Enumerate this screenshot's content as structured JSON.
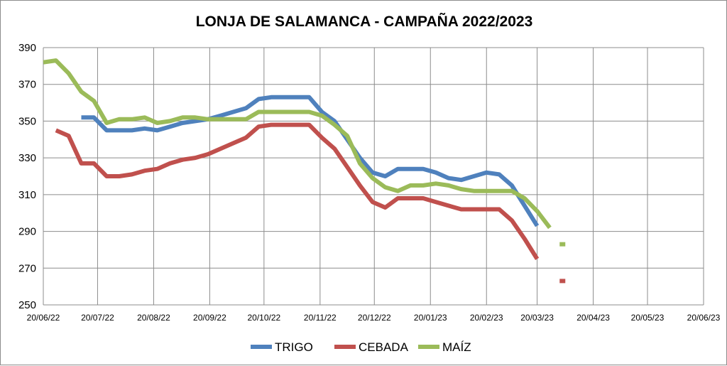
{
  "chart_data": {
    "type": "line",
    "title": "LONJA DE SALAMANCA - CAMPAÑA 2022/2023",
    "xlabel": "",
    "ylabel": "",
    "ylim": [
      250,
      390
    ],
    "yticks": [
      250,
      270,
      290,
      310,
      330,
      350,
      370,
      390
    ],
    "xlim": [
      "2022-06-20",
      "2023-06-20"
    ],
    "xticks": [
      {
        "date": "2022-06-20",
        "label": "20/06/22"
      },
      {
        "date": "2022-07-20",
        "label": "20/07/22"
      },
      {
        "date": "2022-08-20",
        "label": "20/08/22"
      },
      {
        "date": "2022-09-20",
        "label": "20/09/22"
      },
      {
        "date": "2022-10-20",
        "label": "20/10/22"
      },
      {
        "date": "2022-11-20",
        "label": "20/11/22"
      },
      {
        "date": "2022-12-20",
        "label": "20/12/22"
      },
      {
        "date": "2023-01-20",
        "label": "20/01/23"
      },
      {
        "date": "2023-02-20",
        "label": "20/02/23"
      },
      {
        "date": "2023-03-20",
        "label": "20/03/23"
      },
      {
        "date": "2023-04-20",
        "label": "20/04/23"
      },
      {
        "date": "2023-05-20",
        "label": "20/05/23"
      },
      {
        "date": "2023-06-20",
        "label": "20/06/23"
      }
    ],
    "grid": true,
    "legend_position": "bottom",
    "series": [
      {
        "name": "TRIGO",
        "color": "#4f81bd",
        "points": [
          [
            "2022-07-11",
            352
          ],
          [
            "2022-07-18",
            352
          ],
          [
            "2022-07-25",
            345
          ],
          [
            "2022-08-01",
            345
          ],
          [
            "2022-08-08",
            345
          ],
          [
            "2022-08-15",
            346
          ],
          [
            "2022-08-22",
            345
          ],
          [
            "2022-08-29",
            347
          ],
          [
            "2022-09-05",
            349
          ],
          [
            "2022-09-12",
            350
          ],
          [
            "2022-09-19",
            351
          ],
          [
            "2022-09-26",
            353
          ],
          [
            "2022-10-03",
            355
          ],
          [
            "2022-10-10",
            357
          ],
          [
            "2022-10-17",
            362
          ],
          [
            "2022-10-24",
            363
          ],
          [
            "2022-10-31",
            363
          ],
          [
            "2022-11-07",
            363
          ],
          [
            "2022-11-14",
            363
          ],
          [
            "2022-11-21",
            355
          ],
          [
            "2022-11-28",
            350
          ],
          [
            "2022-12-05",
            340
          ],
          [
            "2022-12-12",
            330
          ],
          [
            "2022-12-19",
            322
          ],
          [
            "2022-12-26",
            320
          ],
          [
            "2023-01-02",
            324
          ],
          [
            "2023-01-09",
            324
          ],
          [
            "2023-01-16",
            324
          ],
          [
            "2023-01-23",
            322
          ],
          [
            "2023-01-30",
            319
          ],
          [
            "2023-02-06",
            318
          ],
          [
            "2023-02-13",
            320
          ],
          [
            "2023-02-20",
            322
          ],
          [
            "2023-02-27",
            321
          ],
          [
            "2023-03-06",
            315
          ],
          [
            "2023-03-13",
            304
          ],
          [
            "2023-03-20",
            293
          ]
        ]
      },
      {
        "name": "CEBADA",
        "color": "#c0504d",
        "points": [
          [
            "2022-06-27",
            345
          ],
          [
            "2022-07-04",
            342
          ],
          [
            "2022-07-11",
            327
          ],
          [
            "2022-07-18",
            327
          ],
          [
            "2022-07-25",
            320
          ],
          [
            "2022-08-01",
            320
          ],
          [
            "2022-08-08",
            321
          ],
          [
            "2022-08-15",
            323
          ],
          [
            "2022-08-22",
            324
          ],
          [
            "2022-08-29",
            327
          ],
          [
            "2022-09-05",
            329
          ],
          [
            "2022-09-12",
            330
          ],
          [
            "2022-09-19",
            332
          ],
          [
            "2022-09-26",
            335
          ],
          [
            "2022-10-03",
            338
          ],
          [
            "2022-10-10",
            341
          ],
          [
            "2022-10-17",
            347
          ],
          [
            "2022-10-24",
            348
          ],
          [
            "2022-10-31",
            348
          ],
          [
            "2022-11-07",
            348
          ],
          [
            "2022-11-14",
            348
          ],
          [
            "2022-11-21",
            341
          ],
          [
            "2022-11-28",
            335
          ],
          [
            "2022-12-05",
            325
          ],
          [
            "2022-12-12",
            315
          ],
          [
            "2022-12-19",
            306
          ],
          [
            "2022-12-26",
            303
          ],
          [
            "2023-01-02",
            308
          ],
          [
            "2023-01-09",
            308
          ],
          [
            "2023-01-16",
            308
          ],
          [
            "2023-01-23",
            306
          ],
          [
            "2023-01-30",
            304
          ],
          [
            "2023-02-06",
            302
          ],
          [
            "2023-02-13",
            302
          ],
          [
            "2023-02-20",
            302
          ],
          [
            "2023-02-27",
            302
          ],
          [
            "2023-03-06",
            296
          ],
          [
            "2023-03-13",
            286
          ],
          [
            "2023-03-20",
            275
          ]
        ],
        "extra_points": [
          [
            "2023-04-03",
            263
          ]
        ]
      },
      {
        "name": "MAÍZ",
        "color": "#9bbb59",
        "points": [
          [
            "2022-06-20",
            382
          ],
          [
            "2022-06-27",
            383
          ],
          [
            "2022-07-04",
            376
          ],
          [
            "2022-07-11",
            366
          ],
          [
            "2022-07-18",
            361
          ],
          [
            "2022-07-25",
            349
          ],
          [
            "2022-08-01",
            351
          ],
          [
            "2022-08-08",
            351
          ],
          [
            "2022-08-15",
            352
          ],
          [
            "2022-08-22",
            349
          ],
          [
            "2022-08-29",
            350
          ],
          [
            "2022-09-05",
            352
          ],
          [
            "2022-09-12",
            352
          ],
          [
            "2022-09-19",
            351
          ],
          [
            "2022-09-26",
            351
          ],
          [
            "2022-10-03",
            351
          ],
          [
            "2022-10-10",
            351
          ],
          [
            "2022-10-17",
            355
          ],
          [
            "2022-10-24",
            355
          ],
          [
            "2022-10-31",
            355
          ],
          [
            "2022-11-07",
            355
          ],
          [
            "2022-11-14",
            355
          ],
          [
            "2022-11-21",
            353
          ],
          [
            "2022-11-28",
            348
          ],
          [
            "2022-12-05",
            342
          ],
          [
            "2022-12-12",
            327
          ],
          [
            "2022-12-19",
            319
          ],
          [
            "2022-12-26",
            314
          ],
          [
            "2023-01-02",
            312
          ],
          [
            "2023-01-09",
            315
          ],
          [
            "2023-01-16",
            315
          ],
          [
            "2023-01-23",
            316
          ],
          [
            "2023-01-30",
            315
          ],
          [
            "2023-02-06",
            313
          ],
          [
            "2023-02-13",
            312
          ],
          [
            "2023-02-20",
            312
          ],
          [
            "2023-02-27",
            312
          ],
          [
            "2023-03-06",
            312
          ],
          [
            "2023-03-13",
            308
          ],
          [
            "2023-03-20",
            301
          ],
          [
            "2023-03-27",
            292
          ]
        ],
        "extra_points": [
          [
            "2023-04-03",
            283
          ]
        ]
      }
    ]
  }
}
